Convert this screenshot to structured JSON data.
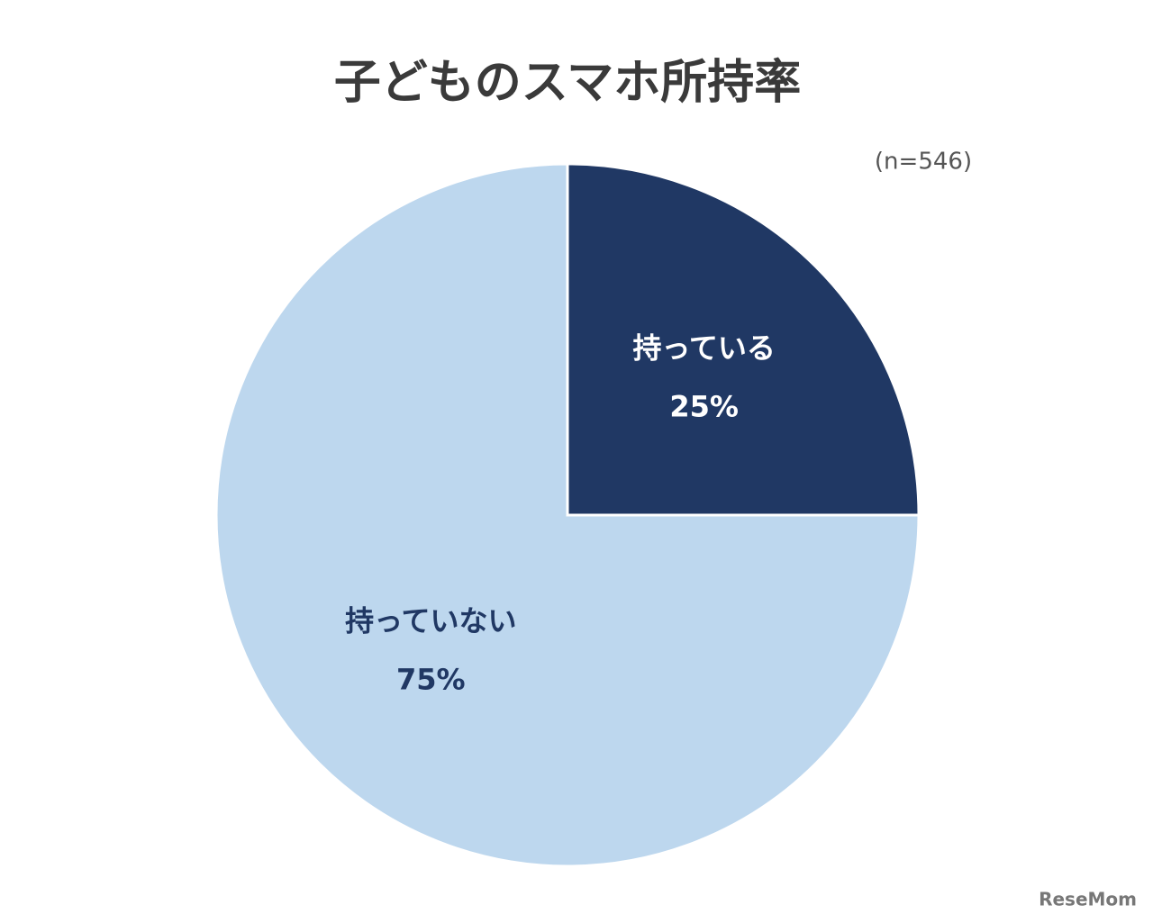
{
  "chart_data": {
    "type": "pie",
    "title": "子どものスマホ所持率",
    "subtitle": "(n=546)",
    "categories": [
      "持っている",
      "持っていない"
    ],
    "values": [
      25,
      75
    ],
    "value_labels": [
      "25%",
      "75%"
    ],
    "colors": [
      "#203864",
      "#bdd7ee"
    ],
    "label_colors": [
      "#ffffff",
      "#203864"
    ]
  },
  "watermark": "ReseMom"
}
